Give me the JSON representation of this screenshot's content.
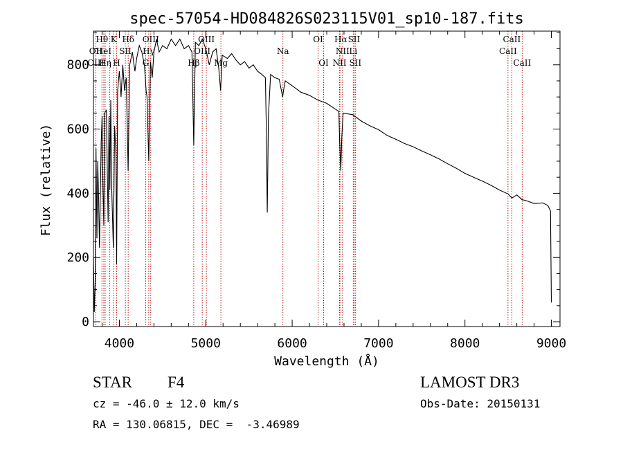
{
  "chart_data": {
    "type": "line",
    "title": "spec-57054-HD084826S023115V01_sp10-187.fits",
    "xlabel": "Wavelength (Å)",
    "ylabel": "Flux (relative)",
    "xlim": [
      3700,
      9100
    ],
    "ylim": [
      -15,
      905
    ],
    "xticks": [
      4000,
      5000,
      6000,
      7000,
      8000,
      9000
    ],
    "yticks": [
      0,
      200,
      400,
      600,
      800
    ],
    "grid": false,
    "series": [
      {
        "name": "flux",
        "points": [
          [
            3700,
            200
          ],
          [
            3710,
            30
          ],
          [
            3720,
            120
          ],
          [
            3730,
            540
          ],
          [
            3740,
            260
          ],
          [
            3750,
            500
          ],
          [
            3760,
            380
          ],
          [
            3770,
            230
          ],
          [
            3790,
            560
          ],
          [
            3800,
            640
          ],
          [
            3810,
            420
          ],
          [
            3820,
            300
          ],
          [
            3830,
            650
          ],
          [
            3850,
            660
          ],
          [
            3860,
            470
          ],
          [
            3870,
            310
          ],
          [
            3880,
            640
          ],
          [
            3890,
            410
          ],
          [
            3900,
            690
          ],
          [
            3910,
            430
          ],
          [
            3930,
            230
          ],
          [
            3945,
            610
          ],
          [
            3960,
            520
          ],
          [
            3968,
            180
          ],
          [
            3980,
            720
          ],
          [
            4000,
            780
          ],
          [
            4020,
            700
          ],
          [
            4040,
            800
          ],
          [
            4060,
            720
          ],
          [
            4080,
            760
          ],
          [
            4101,
            470
          ],
          [
            4120,
            800
          ],
          [
            4150,
            840
          ],
          [
            4180,
            780
          ],
          [
            4200,
            820
          ],
          [
            4230,
            860
          ],
          [
            4260,
            840
          ],
          [
            4290,
            800
          ],
          [
            4310,
            720
          ],
          [
            4320,
            700
          ],
          [
            4340,
            500
          ],
          [
            4360,
            810
          ],
          [
            4380,
            760
          ],
          [
            4400,
            840
          ],
          [
            4430,
            880
          ],
          [
            4460,
            840
          ],
          [
            4500,
            860
          ],
          [
            4550,
            850
          ],
          [
            4600,
            880
          ],
          [
            4650,
            860
          ],
          [
            4700,
            880
          ],
          [
            4750,
            850
          ],
          [
            4800,
            860
          ],
          [
            4840,
            840
          ],
          [
            4861,
            550
          ],
          [
            4880,
            870
          ],
          [
            4920,
            860
          ],
          [
            4960,
            880
          ],
          [
            5000,
            850
          ],
          [
            5040,
            800
          ],
          [
            5080,
            840
          ],
          [
            5120,
            850
          ],
          [
            5150,
            790
          ],
          [
            5172,
            720
          ],
          [
            5190,
            830
          ],
          [
            5250,
            820
          ],
          [
            5300,
            835
          ],
          [
            5350,
            815
          ],
          [
            5400,
            800
          ],
          [
            5450,
            810
          ],
          [
            5500,
            790
          ],
          [
            5550,
            800
          ],
          [
            5600,
            780
          ],
          [
            5650,
            770
          ],
          [
            5690,
            760
          ],
          [
            5700,
            620
          ],
          [
            5712,
            340
          ],
          [
            5725,
            640
          ],
          [
            5750,
            770
          ],
          [
            5800,
            760
          ],
          [
            5850,
            755
          ],
          [
            5890,
            700
          ],
          [
            5900,
            720
          ],
          [
            5920,
            750
          ],
          [
            6000,
            735
          ],
          [
            6100,
            715
          ],
          [
            6200,
            705
          ],
          [
            6300,
            690
          ],
          [
            6400,
            680
          ],
          [
            6500,
            662
          ],
          [
            6540,
            655
          ],
          [
            6550,
            560
          ],
          [
            6563,
            470
          ],
          [
            6575,
            575
          ],
          [
            6590,
            650
          ],
          [
            6700,
            645
          ],
          [
            6800,
            625
          ],
          [
            6900,
            610
          ],
          [
            7000,
            598
          ],
          [
            7100,
            580
          ],
          [
            7200,
            568
          ],
          [
            7300,
            555
          ],
          [
            7400,
            545
          ],
          [
            7500,
            532
          ],
          [
            7600,
            520
          ],
          [
            7700,
            507
          ],
          [
            7800,
            492
          ],
          [
            7900,
            478
          ],
          [
            8000,
            462
          ],
          [
            8100,
            450
          ],
          [
            8200,
            438
          ],
          [
            8300,
            425
          ],
          [
            8400,
            410
          ],
          [
            8498,
            398
          ],
          [
            8542,
            385
          ],
          [
            8600,
            395
          ],
          [
            8662,
            380
          ],
          [
            8700,
            378
          ],
          [
            8800,
            368
          ],
          [
            8900,
            370
          ],
          [
            8960,
            362
          ],
          [
            8990,
            345
          ],
          [
            9000,
            60
          ]
        ]
      }
    ],
    "annotations": [
      {
        "label": "Hθ",
        "x": 3798,
        "row": 1
      },
      {
        "label": "OII",
        "x": 3727,
        "row": 2
      },
      {
        "label": "OIII",
        "x": 3727,
        "row": 3
      },
      {
        "label": "HeI",
        "x": 3820,
        "row": 2
      },
      {
        "label": "Hη",
        "x": 3836,
        "row": 3
      },
      {
        "label": "K",
        "x": 3934,
        "row": 1
      },
      {
        "label": "SII",
        "x": 4069,
        "row": 2
      },
      {
        "label": "H",
        "x": 3969,
        "row": 3
      },
      {
        "label": "Hδ",
        "x": 4102,
        "row": 1
      },
      {
        "label": "G",
        "x": 4305,
        "row": 3
      },
      {
        "label": "OIII",
        "x": 4363,
        "row": 1
      },
      {
        "label": "Hγ",
        "x": 4340,
        "row": 2
      },
      {
        "label": "Hβ",
        "x": 4861,
        "row": 3
      },
      {
        "label": "OIII",
        "x": 5007,
        "row": 1
      },
      {
        "label": "OIII",
        "x": 4959,
        "row": 2
      },
      {
        "label": "Mg",
        "x": 5175,
        "row": 3
      },
      {
        "label": "Na",
        "x": 5893,
        "row": 2
      },
      {
        "label": "OI",
        "x": 6300,
        "row": 1
      },
      {
        "label": "OI",
        "x": 6364,
        "row": 3
      },
      {
        "label": "Hα",
        "x": 6563,
        "row": 1
      },
      {
        "label": "NII",
        "x": 6583,
        "row": 2
      },
      {
        "label": "NII",
        "x": 6548,
        "row": 3
      },
      {
        "label": "SII",
        "x": 6716,
        "row": 1
      },
      {
        "label": "SII",
        "x": 6731,
        "row": 3
      },
      {
        "label": "Li",
        "x": 6707,
        "row": 2
      },
      {
        "label": "CaII",
        "x": 8542,
        "row": 1
      },
      {
        "label": "CaII",
        "x": 8498,
        "row": 2
      },
      {
        "label": "CaII",
        "x": 8662,
        "row": 3
      }
    ],
    "line_markers": [
      3727,
      3798,
      3820,
      3836,
      3889,
      3934,
      3969,
      4069,
      4102,
      4305,
      4340,
      4363,
      4861,
      4959,
      5007,
      5175,
      5893,
      6300,
      6364,
      6548,
      6563,
      6583,
      6707,
      6716,
      6731,
      8498,
      8542,
      8662
    ]
  },
  "info": {
    "object": "STAR",
    "subclass": "F4",
    "survey": "LAMOST DR3",
    "cz": "cz = -46.0 ± 12.0 km/s",
    "obsdate": "Obs-Date: 20150131",
    "coords": "RA = 130.06815, DEC =  -3.46989"
  },
  "colors": {
    "marker": "#b00000",
    "ink": "#000000"
  }
}
